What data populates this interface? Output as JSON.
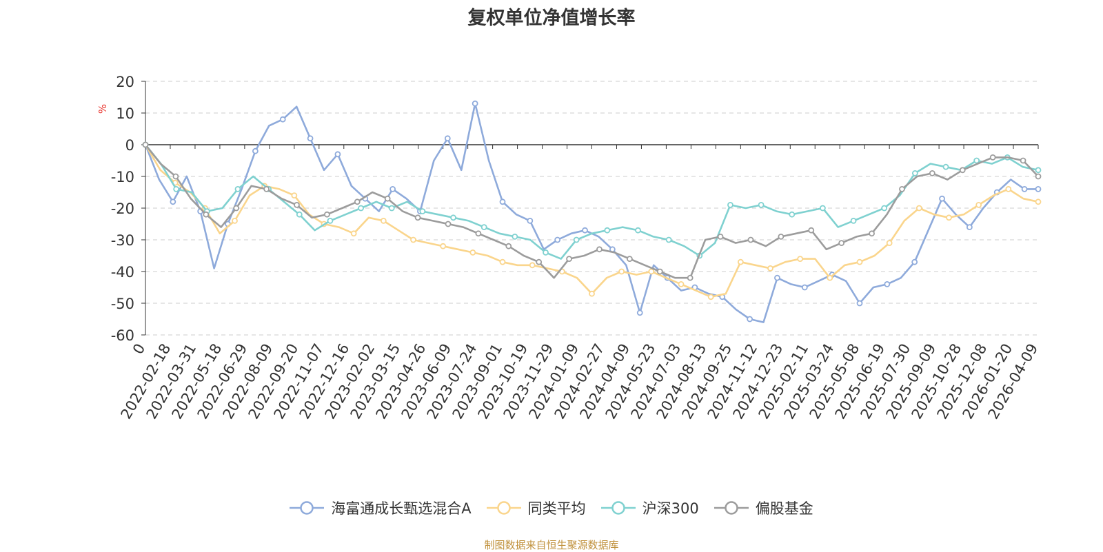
{
  "chart_data": {
    "type": "line",
    "title": "复权单位净值增长率",
    "ylabel": "%",
    "xlabel": "",
    "ylim": [
      -60,
      20
    ],
    "yticks": [
      20,
      10,
      0,
      -10,
      -20,
      -30,
      -40,
      -50,
      -60
    ],
    "x_tick_labels": [
      "0",
      "2022-02-18",
      "2022-03-31",
      "2022-05-18",
      "2022-06-29",
      "2022-08-09",
      "2022-09-20",
      "2022-11-07",
      "2022-12-16",
      "2023-02-02",
      "2023-03-15",
      "2023-04-26",
      "2023-06-09",
      "2023-07-24",
      "2023-09-01",
      "2023-10-19",
      "2023-11-29",
      "2024-01-09",
      "2024-02-27",
      "2024-04-09",
      "2024-05-23",
      "2024-07-03",
      "2024-08-13",
      "2024-09-25",
      "2024-11-12",
      "2024-12-23",
      "2025-02-11",
      "2025-03-24",
      "2025-05-08",
      "2025-06-19",
      "2025-07-30",
      "2025-09-09",
      "2025-10-28",
      "2025-12-08",
      "2026-01-20",
      "2026-04-09"
    ],
    "grid": true,
    "legend_position": "bottom",
    "series": [
      {
        "name": "海富通成长甄选混合A",
        "color": "#8eaadb",
        "values": [
          0,
          -11,
          -18,
          -10,
          -21,
          -39,
          -25,
          -14,
          -2,
          6,
          8,
          12,
          2,
          -8,
          -3,
          -13,
          -17,
          -21,
          -14,
          -17,
          -21,
          -5,
          2,
          -8,
          13,
          -5,
          -18,
          -22,
          -24,
          -33,
          -30,
          -28,
          -27,
          -29,
          -33,
          -38,
          -53,
          -38,
          -42,
          -46,
          -45,
          -47,
          -48,
          -52,
          -55,
          -56,
          -42,
          -44,
          -45,
          -43,
          -41,
          -43,
          -50,
          -45,
          -44,
          -42,
          -37,
          -27,
          -17,
          -22,
          -26,
          -20,
          -15,
          -11,
          -14,
          -14
        ]
      },
      {
        "name": "同类平均",
        "color": "#fad58c",
        "values": [
          0,
          -8,
          -12,
          -15,
          -20,
          -28,
          -24,
          -16,
          -13,
          -14,
          -16,
          -22,
          -25,
          -26,
          -28,
          -23,
          -24,
          -27,
          -30,
          -31,
          -32,
          -33,
          -34,
          -35,
          -37,
          -38,
          -38,
          -39,
          -40,
          -42,
          -47,
          -42,
          -40,
          -41,
          -40,
          -42,
          -44,
          -46,
          -48,
          -47,
          -37,
          -38,
          -39,
          -37,
          -36,
          -36,
          -42,
          -38,
          -37,
          -35,
          -31,
          -24,
          -20,
          -22,
          -23,
          -22,
          -19,
          -16,
          -14,
          -17,
          -18
        ]
      },
      {
        "name": "沪深300",
        "color": "#7fd1d0",
        "values": [
          0,
          -6,
          -14,
          -15,
          -21,
          -20,
          -14,
          -10,
          -14,
          -18,
          -22,
          -27,
          -24,
          -22,
          -20,
          -18,
          -20,
          -18,
          -21,
          -22,
          -23,
          -24,
          -26,
          -28,
          -29,
          -30,
          -34,
          -36,
          -30,
          -28,
          -27,
          -26,
          -27,
          -29,
          -30,
          -32,
          -35,
          -31,
          -19,
          -20,
          -19,
          -21,
          -22,
          -21,
          -20,
          -26,
          -24,
          -22,
          -20,
          -16,
          -9,
          -6,
          -7,
          -8,
          -5,
          -6,
          -4,
          -7,
          -8
        ]
      },
      {
        "name": "偏股基金",
        "color": "#9c9c9c",
        "values": [
          0,
          -6,
          -10,
          -17,
          -22,
          -26,
          -20,
          -13,
          -14,
          -17,
          -19,
          -23,
          -22,
          -20,
          -18,
          -15,
          -17,
          -21,
          -23,
          -24,
          -25,
          -26,
          -28,
          -30,
          -32,
          -35,
          -37,
          -42,
          -36,
          -35,
          -33,
          -34,
          -36,
          -38,
          -40,
          -42,
          -42,
          -30,
          -29,
          -31,
          -30,
          -32,
          -29,
          -28,
          -27,
          -33,
          -31,
          -29,
          -28,
          -22,
          -14,
          -10,
          -9,
          -11,
          -8,
          -6,
          -4,
          -4,
          -5,
          -10
        ]
      }
    ]
  },
  "footer": {
    "source": "制图数据来自恒生聚源数据库"
  }
}
